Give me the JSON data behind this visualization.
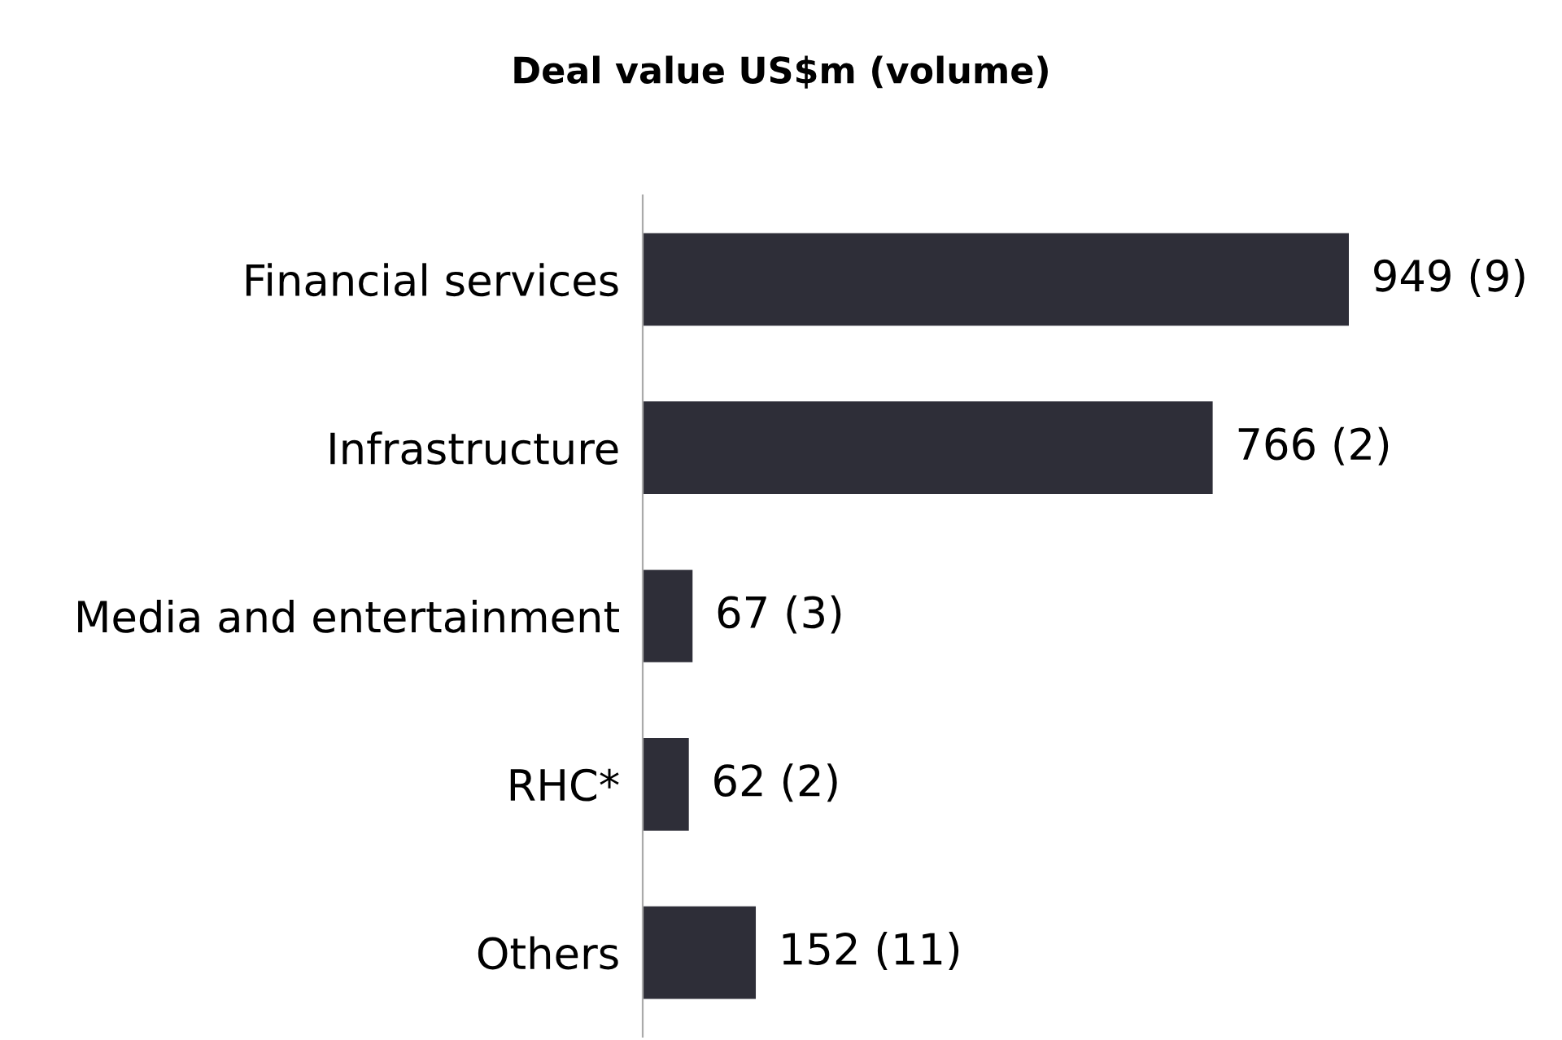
{
  "chart_data": {
    "type": "bar",
    "orientation": "horizontal",
    "title": "Deal value US$m (volume)",
    "categories": [
      "Financial services",
      "Infrastructure",
      "Media and entertainment",
      "RHC*",
      "Others"
    ],
    "values": [
      949,
      766,
      67,
      62,
      152
    ],
    "value_labels": [
      "949 (9)",
      "766 (2)",
      "67 (3)",
      "62 (2)",
      "152 (11)"
    ],
    "color": "#2e2e38",
    "tick_labels": "y",
    "grid": false,
    "legend": false
  }
}
